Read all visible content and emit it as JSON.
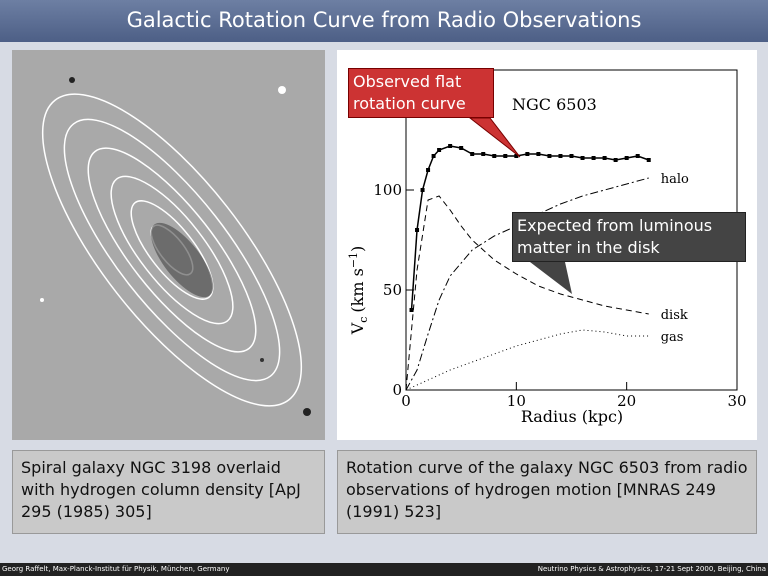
{
  "header": {
    "title": "Galactic Rotation Curve from Radio Observations"
  },
  "left_panel": {
    "caption": "Spiral galaxy NGC 3198 overlaid with hydrogen column density [ApJ 295 (1985) 305]"
  },
  "right_panel": {
    "caption": "Rotation curve of the galaxy NGC 6503 from radio observations of hydrogen motion [MNRAS 249 (1991) 523]",
    "plot": {
      "type": "line",
      "title": "NGC 6503",
      "x_label": "Radius (kpc)",
      "y_label": [
        "V",
        "c",
        "(km s",
        "−1",
        ")"
      ],
      "xlim": [
        0,
        30
      ],
      "ylim": [
        0,
        160
      ],
      "xticks": [
        0,
        10,
        20,
        30
      ],
      "yticks": [
        0,
        50,
        100
      ],
      "series": [
        {
          "style": "points",
          "x": [
            0.5,
            1,
            1.5,
            2,
            2.5,
            3,
            4,
            5,
            6,
            7,
            8,
            9,
            10,
            11,
            12,
            13,
            14,
            15,
            16,
            17,
            18,
            19,
            20,
            21,
            22
          ],
          "values": [
            40,
            80,
            100,
            110,
            117,
            120,
            122,
            121,
            118,
            118,
            117,
            117,
            117,
            118,
            118,
            117,
            117,
            117,
            116,
            116,
            116,
            115,
            116,
            117,
            115
          ]
        },
        {
          "name": "halo",
          "style": "dashdot",
          "x": [
            0,
            1,
            2,
            3,
            4,
            6,
            8,
            10,
            12,
            14,
            16,
            18,
            20,
            22
          ],
          "values": [
            0,
            10,
            28,
            45,
            57,
            70,
            77,
            82,
            88,
            93,
            97,
            100,
            103,
            106
          ]
        },
        {
          "name": "disk",
          "style": "dashed",
          "x": [
            0,
            1,
            2,
            3,
            4,
            5,
            6,
            8,
            10,
            12,
            14,
            16,
            18,
            20,
            22
          ],
          "values": [
            0,
            60,
            95,
            97,
            90,
            82,
            75,
            65,
            58,
            52,
            48,
            45,
            42,
            40,
            38
          ]
        },
        {
          "name": "gas",
          "style": "dotted",
          "x": [
            0,
            2,
            4,
            6,
            8,
            10,
            12,
            14,
            16,
            18,
            20,
            22
          ],
          "values": [
            0,
            5,
            10,
            14,
            18,
            22,
            25,
            28,
            30,
            29,
            27,
            27
          ]
        }
      ]
    },
    "annotations": [
      "Observed flat rotation curve",
      "Expected from luminous matter in the disk"
    ]
  },
  "footer": {
    "left": "Georg Raffelt, Max-Planck-Institut für Physik, München, Germany",
    "right": "Neutrino Physics & Astrophysics, 17-21 Sept 2000, Beijing, China"
  }
}
